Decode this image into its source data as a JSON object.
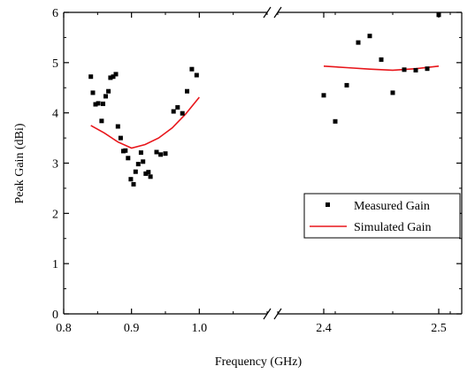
{
  "chart_data": {
    "type": "scatter",
    "title": "",
    "xlabel": "Frequency (GHz)",
    "ylabel": "Peak Gain (dBi)",
    "ylim": [
      0,
      6
    ],
    "y_ticks": [
      "0",
      "1",
      "2",
      "3",
      "4",
      "5",
      "6"
    ],
    "x_axis": {
      "broken": true,
      "segments": [
        {
          "range": [
            0.8,
            1.1
          ],
          "ticks": [
            "0.8",
            "0.9",
            "1.0"
          ]
        },
        {
          "range": [
            2.36,
            2.52
          ],
          "ticks": [
            "2.4",
            "2.5"
          ]
        }
      ]
    },
    "grid": false,
    "legend_position": "lower-right",
    "series": [
      {
        "name": "Measured Gain",
        "style": "square-markers",
        "color": "#000000",
        "points": [
          [
            0.84,
            4.72
          ],
          [
            0.843,
            4.4
          ],
          [
            0.847,
            4.17
          ],
          [
            0.851,
            4.19
          ],
          [
            0.856,
            3.84
          ],
          [
            0.858,
            4.18
          ],
          [
            0.862,
            4.33
          ],
          [
            0.866,
            4.43
          ],
          [
            0.869,
            4.7
          ],
          [
            0.873,
            4.72
          ],
          [
            0.877,
            4.77
          ],
          [
            0.88,
            3.73
          ],
          [
            0.884,
            3.5
          ],
          [
            0.888,
            3.24
          ],
          [
            0.891,
            3.25
          ],
          [
            0.895,
            3.1
          ],
          [
            0.899,
            2.68
          ],
          [
            0.903,
            2.58
          ],
          [
            0.906,
            2.83
          ],
          [
            0.91,
            2.98
          ],
          [
            0.914,
            3.21
          ],
          [
            0.917,
            3.03
          ],
          [
            0.921,
            2.79
          ],
          [
            0.925,
            2.82
          ],
          [
            0.928,
            2.73
          ],
          [
            0.937,
            3.22
          ],
          [
            0.943,
            3.17
          ],
          [
            0.95,
            3.19
          ],
          [
            0.962,
            4.03
          ],
          [
            0.968,
            4.11
          ],
          [
            0.975,
            3.99
          ],
          [
            0.982,
            4.43
          ],
          [
            0.989,
            4.87
          ],
          [
            0.996,
            4.75
          ],
          [
            2.4,
            4.35
          ],
          [
            2.41,
            3.83
          ],
          [
            2.42,
            4.55
          ],
          [
            2.43,
            5.4
          ],
          [
            2.44,
            5.53
          ],
          [
            2.45,
            5.06
          ],
          [
            2.46,
            4.4
          ],
          [
            2.47,
            4.86
          ],
          [
            2.48,
            4.85
          ],
          [
            2.49,
            4.88
          ],
          [
            2.5,
            5.95
          ]
        ]
      },
      {
        "name": "Simulated Gain",
        "style": "line",
        "color": "#e8161b",
        "points_segment1": [
          [
            0.84,
            3.75
          ],
          [
            0.86,
            3.6
          ],
          [
            0.88,
            3.42
          ],
          [
            0.9,
            3.3
          ],
          [
            0.92,
            3.37
          ],
          [
            0.94,
            3.5
          ],
          [
            0.96,
            3.7
          ],
          [
            0.98,
            3.98
          ],
          [
            1.0,
            4.31
          ]
        ],
        "points_segment2": [
          [
            2.4,
            4.93
          ],
          [
            2.42,
            4.9
          ],
          [
            2.44,
            4.87
          ],
          [
            2.46,
            4.85
          ],
          [
            2.48,
            4.88
          ],
          [
            2.5,
            4.93
          ]
        ]
      }
    ]
  }
}
